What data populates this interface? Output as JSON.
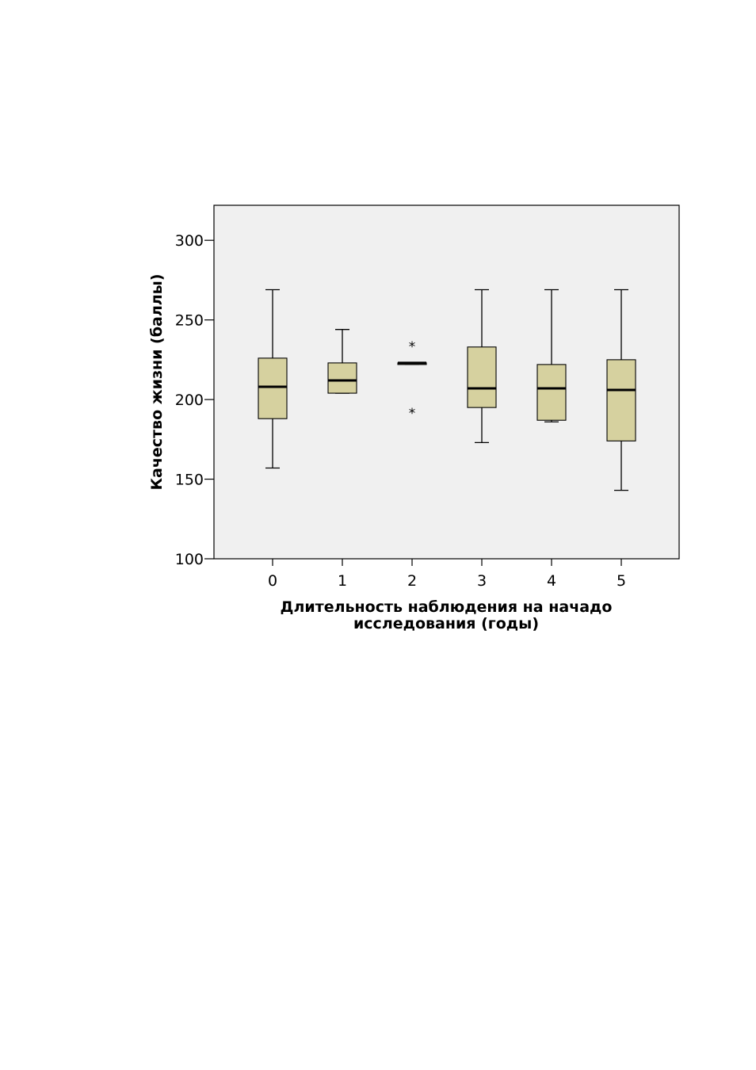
{
  "chart_data": {
    "type": "boxplot",
    "title": "",
    "xlabel_lines": [
      "Длительность наблюдения на начадо",
      "исследования (годы)"
    ],
    "ylabel": "Качество жизни (баллы)",
    "ylim": [
      100,
      322
    ],
    "yticks": [
      100,
      150,
      200,
      250,
      300
    ],
    "grid": false,
    "categories": [
      "0",
      "1",
      "2",
      "3",
      "4",
      "5"
    ],
    "colors": {
      "box_fill": "#d6d19f",
      "plot_background": "#f0f0f0",
      "line": "#000000"
    },
    "boxes": [
      {
        "category": "0",
        "whisker_low": 157,
        "q1": 188,
        "median": 208,
        "q3": 226,
        "whisker_high": 269,
        "extremes": []
      },
      {
        "category": "1",
        "whisker_low": 204,
        "q1": 204,
        "median": 212,
        "q3": 223,
        "whisker_high": 244,
        "extremes": []
      },
      {
        "category": "2",
        "whisker_low": 222,
        "q1": 222,
        "median": 223,
        "q3": 223,
        "whisker_high": 223,
        "extremes": [
          236,
          194
        ]
      },
      {
        "category": "3",
        "whisker_low": 173,
        "q1": 195,
        "median": 207,
        "q3": 233,
        "whisker_high": 269,
        "extremes": []
      },
      {
        "category": "4",
        "whisker_low": 186,
        "q1": 187,
        "median": 207,
        "q3": 222,
        "whisker_high": 269,
        "extremes": []
      },
      {
        "category": "5",
        "whisker_low": 143,
        "q1": 174,
        "median": 206,
        "q3": 225,
        "whisker_high": 269,
        "extremes": []
      }
    ]
  }
}
